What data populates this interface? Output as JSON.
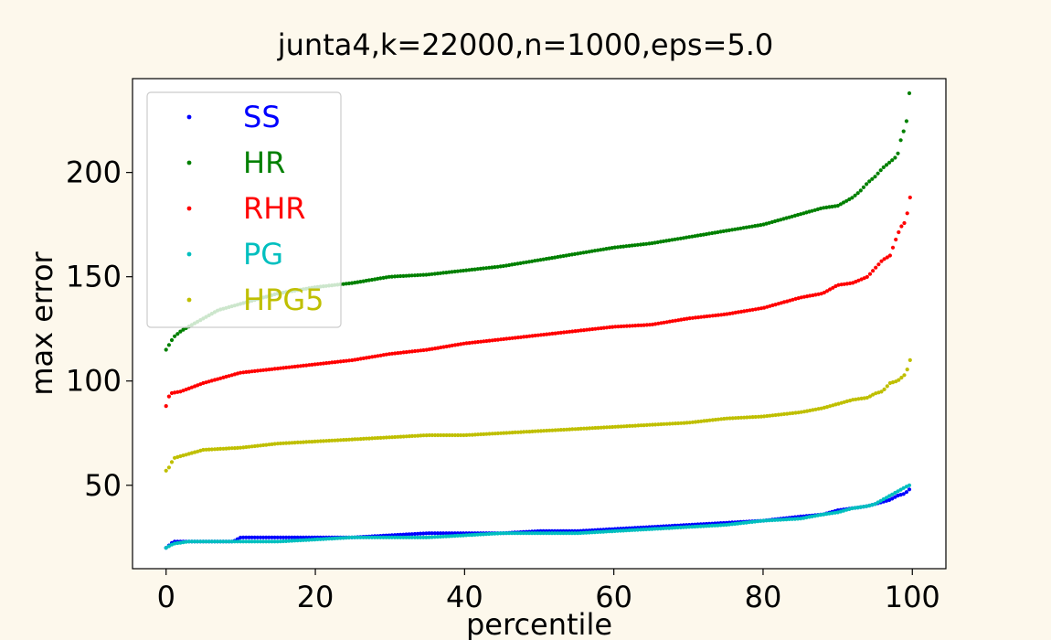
{
  "chart_data": {
    "type": "scatter",
    "title": "junta4,k=22000,n=1000,eps=5.0",
    "xlabel": "percentile",
    "ylabel": "max error",
    "xlim": [
      -4.5,
      104.5
    ],
    "ylim": [
      10,
      245
    ],
    "xticks": [
      0,
      20,
      40,
      60,
      80,
      100
    ],
    "yticks": [
      50,
      100,
      150,
      200
    ],
    "grid": false,
    "legend_position": "upper-left",
    "series": [
      {
        "name": "SS",
        "color": "#0000ff",
        "points": [
          [
            0,
            20
          ],
          [
            1,
            23
          ],
          [
            3,
            23
          ],
          [
            5,
            23
          ],
          [
            7,
            23
          ],
          [
            9,
            23
          ],
          [
            10,
            25
          ],
          [
            15,
            25
          ],
          [
            20,
            25
          ],
          [
            25,
            25
          ],
          [
            30,
            26
          ],
          [
            35,
            27
          ],
          [
            40,
            27
          ],
          [
            45,
            27
          ],
          [
            50,
            28
          ],
          [
            55,
            28
          ],
          [
            60,
            29
          ],
          [
            65,
            30
          ],
          [
            70,
            31
          ],
          [
            75,
            32
          ],
          [
            80,
            33
          ],
          [
            85,
            35
          ],
          [
            88,
            36
          ],
          [
            90,
            38
          ],
          [
            92,
            39
          ],
          [
            94,
            40
          ],
          [
            95,
            41
          ],
          [
            96,
            42
          ],
          [
            97,
            43
          ],
          [
            98,
            45
          ],
          [
            99,
            46
          ],
          [
            99.6,
            48
          ]
        ]
      },
      {
        "name": "HR",
        "color": "#008000",
        "points": [
          [
            0,
            115
          ],
          [
            0.5,
            118
          ],
          [
            1,
            121
          ],
          [
            2,
            124
          ],
          [
            3,
            126
          ],
          [
            5,
            130
          ],
          [
            7,
            134
          ],
          [
            10,
            137
          ],
          [
            15,
            142
          ],
          [
            20,
            145
          ],
          [
            25,
            147
          ],
          [
            30,
            150
          ],
          [
            35,
            151
          ],
          [
            40,
            153
          ],
          [
            45,
            155
          ],
          [
            50,
            158
          ],
          [
            55,
            161
          ],
          [
            60,
            164
          ],
          [
            65,
            166
          ],
          [
            70,
            169
          ],
          [
            75,
            172
          ],
          [
            80,
            175
          ],
          [
            85,
            180
          ],
          [
            88,
            183
          ],
          [
            90,
            184
          ],
          [
            91,
            186
          ],
          [
            92,
            188
          ],
          [
            93,
            191
          ],
          [
            94,
            195
          ],
          [
            95,
            198
          ],
          [
            96,
            202
          ],
          [
            97,
            205
          ],
          [
            98,
            208
          ],
          [
            98.6,
            218
          ],
          [
            99,
            221
          ],
          [
            99.3,
            226
          ],
          [
            99.6,
            238
          ]
        ]
      },
      {
        "name": "RHR",
        "color": "#ff0000",
        "points": [
          [
            0,
            88
          ],
          [
            0.5,
            94
          ],
          [
            2,
            95
          ],
          [
            5,
            99
          ],
          [
            10,
            104
          ],
          [
            15,
            106
          ],
          [
            20,
            108
          ],
          [
            25,
            110
          ],
          [
            30,
            113
          ],
          [
            35,
            115
          ],
          [
            40,
            118
          ],
          [
            45,
            120
          ],
          [
            50,
            122
          ],
          [
            55,
            124
          ],
          [
            60,
            126
          ],
          [
            65,
            127
          ],
          [
            70,
            130
          ],
          [
            75,
            132
          ],
          [
            80,
            135
          ],
          [
            85,
            140
          ],
          [
            88,
            142
          ],
          [
            90,
            146
          ],
          [
            92,
            147
          ],
          [
            94,
            150
          ],
          [
            95,
            154
          ],
          [
            96,
            158
          ],
          [
            97,
            160
          ],
          [
            97.5,
            165
          ],
          [
            98,
            170
          ],
          [
            98.5,
            174
          ],
          [
            99,
            176
          ],
          [
            99.5,
            183
          ],
          [
            99.7,
            188
          ]
        ]
      },
      {
        "name": "PG",
        "color": "#00bfbf",
        "points": [
          [
            0,
            20
          ],
          [
            1,
            22
          ],
          [
            3,
            23
          ],
          [
            5,
            23
          ],
          [
            10,
            23
          ],
          [
            15,
            23
          ],
          [
            20,
            24
          ],
          [
            25,
            25
          ],
          [
            30,
            25
          ],
          [
            35,
            25
          ],
          [
            40,
            26
          ],
          [
            45,
            27
          ],
          [
            50,
            27
          ],
          [
            55,
            27
          ],
          [
            60,
            28
          ],
          [
            65,
            29
          ],
          [
            70,
            30
          ],
          [
            75,
            31
          ],
          [
            80,
            33
          ],
          [
            85,
            34
          ],
          [
            88,
            36
          ],
          [
            90,
            37
          ],
          [
            92,
            39
          ],
          [
            94,
            40
          ],
          [
            95,
            41
          ],
          [
            96,
            43
          ],
          [
            97,
            45
          ],
          [
            98,
            47
          ],
          [
            99,
            49
          ],
          [
            99.6,
            50
          ]
        ]
      },
      {
        "name": "HPG5",
        "color": "#bfbf00",
        "points": [
          [
            0,
            57
          ],
          [
            0.5,
            59
          ],
          [
            1,
            63
          ],
          [
            3,
            65
          ],
          [
            5,
            67
          ],
          [
            10,
            68
          ],
          [
            15,
            70
          ],
          [
            20,
            71
          ],
          [
            25,
            72
          ],
          [
            30,
            73
          ],
          [
            35,
            74
          ],
          [
            40,
            74
          ],
          [
            45,
            75
          ],
          [
            50,
            76
          ],
          [
            55,
            77
          ],
          [
            60,
            78
          ],
          [
            65,
            79
          ],
          [
            70,
            80
          ],
          [
            75,
            82
          ],
          [
            80,
            83
          ],
          [
            85,
            85
          ],
          [
            88,
            87
          ],
          [
            90,
            89
          ],
          [
            92,
            91
          ],
          [
            94,
            92
          ],
          [
            95,
            94
          ],
          [
            96,
            95
          ],
          [
            97,
            99
          ],
          [
            98,
            100
          ],
          [
            99,
            103
          ],
          [
            99.5,
            107
          ],
          [
            99.7,
            110
          ]
        ]
      }
    ]
  }
}
